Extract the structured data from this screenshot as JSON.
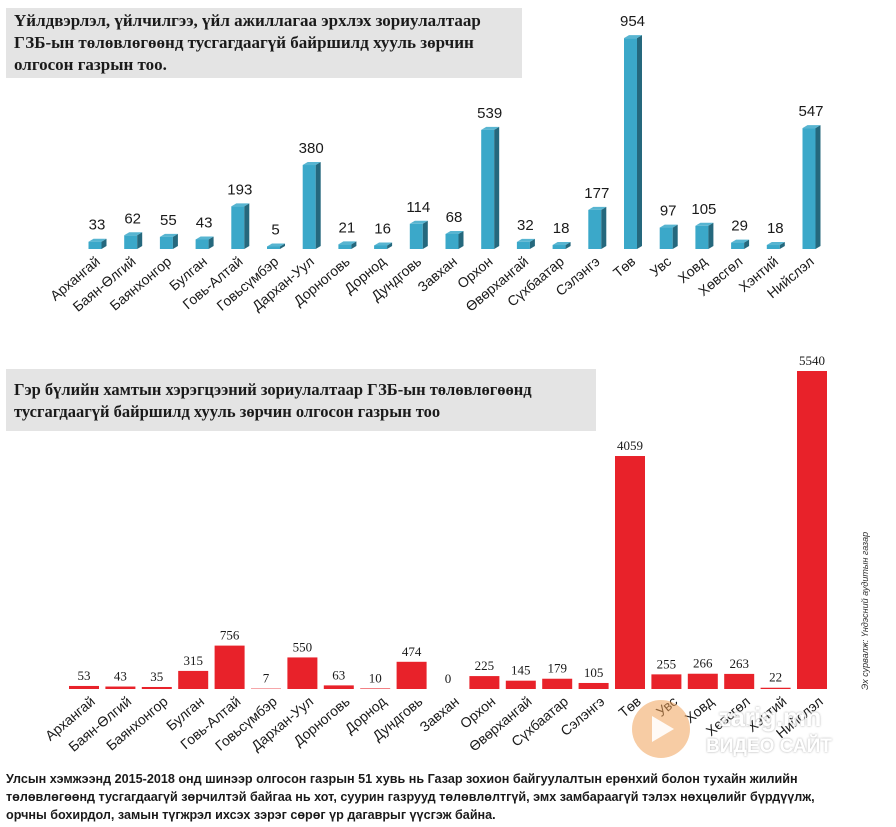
{
  "titles": {
    "chart1_line1": "Үйлдвэрлэл, үйлчилгээ, үйл ажиллагаа эрхлэх зориулалтаар",
    "chart1_line2": "ГЗБ-ын төлөвлөгөөнд тусгагдаагүй байршилд хууль зөрчин",
    "chart1_line3": "олгосон газрын тоо.",
    "chart2_line1": "Гэр бүлийн хамтын хэрэгцээний зориулалтаар ГЗБ-ын төлөвлөгөөнд",
    "chart2_line2": "тусгагдаагүй байршилд хууль зөрчин олгосон газрын тоо"
  },
  "footer": {
    "line1": "Улсын хэмжээнд 2015-2018 онд шинээр олгосон газрын 51 хувь нь Газар зохион байгуулалтын ерөнхий болон тухайн жилийн",
    "line2": "төлөвлөгөөнд тусгагдаагүй зөрчилтэй байгаа нь хот, суурин газрууд төлөвлөлтгүй, эмх замбараагүй тэлэх нөхцөлийг бүрдүүлж,",
    "line3": "орчны бохирдол, замын түгжрэл ихсэх зэрэг сөрөг үр дагаврыг үүсгэж байна."
  },
  "source": "Эх сурвалж: Үндэсний аудитын газар",
  "watermark": {
    "brand": "zarig.mn",
    "sub": "ВИДЕО САЙТ"
  },
  "colors": {
    "chart1_bar": "#3ba8c9",
    "chart2_bar": "#e8222a",
    "title_bg": "#e4e4e4"
  },
  "chart_data": [
    {
      "type": "bar",
      "title": "Үйлдвэрлэл, үйлчилгээ, үйл ажиллагаа эрхлэх зориулалтаар ГЗБ-ын төлөвлөгөөнд тусгагдаагүй байршилд хууль зөрчин олгосон газрын тоо.",
      "categories": [
        "Архангай",
        "Баян-Өлгий",
        "Баянхонгор",
        "Булган",
        "Говь-Алтай",
        "Говьсүмбэр",
        "Дархан-Уул",
        "Дорноговь",
        "Дорнод",
        "Дундговь",
        "Завхан",
        "Орхон",
        "Өвөрхангай",
        "Сүхбаатар",
        "Сэлэнгэ",
        "Төв",
        "Увс",
        "Ховд",
        "Хөвсгөл",
        "Хэнтий",
        "Нийслэл"
      ],
      "values": [
        33,
        62,
        55,
        43,
        193,
        5,
        380,
        21,
        16,
        114,
        68,
        539,
        32,
        18,
        177,
        954,
        97,
        105,
        29,
        18,
        547
      ],
      "ylim": [
        0,
        1000
      ],
      "grid": false,
      "style": "3d"
    },
    {
      "type": "bar",
      "title": "Гэр бүлийн хамтын хэрэгцээний зориулалтаар ГЗБ-ын төлөвлөгөөнд тусгагдаагүй байршилд хууль зөрчин олгосон газрын тоо",
      "categories": [
        "Архангай",
        "Баян-Өлгий",
        "Баянхонгор",
        "Булган",
        "Говь-Алтай",
        "Говьсүмбэр",
        "Дархан-Уул",
        "Дорноговь",
        "Дорнод",
        "Дундговь",
        "Завхан",
        "Орхон",
        "Өвөрхангай",
        "Сүхбаатар",
        "Сэлэнгэ",
        "Төв",
        "Увс",
        "Ховд",
        "Хөвсгөл",
        "Хэнтий",
        "Нийслэл"
      ],
      "values": [
        53,
        43,
        35,
        315,
        756,
        7,
        550,
        63,
        10,
        474,
        0,
        225,
        145,
        179,
        105,
        4059,
        255,
        266,
        263,
        22,
        5540
      ],
      "ylim": [
        0,
        5600
      ],
      "grid": false
    }
  ]
}
